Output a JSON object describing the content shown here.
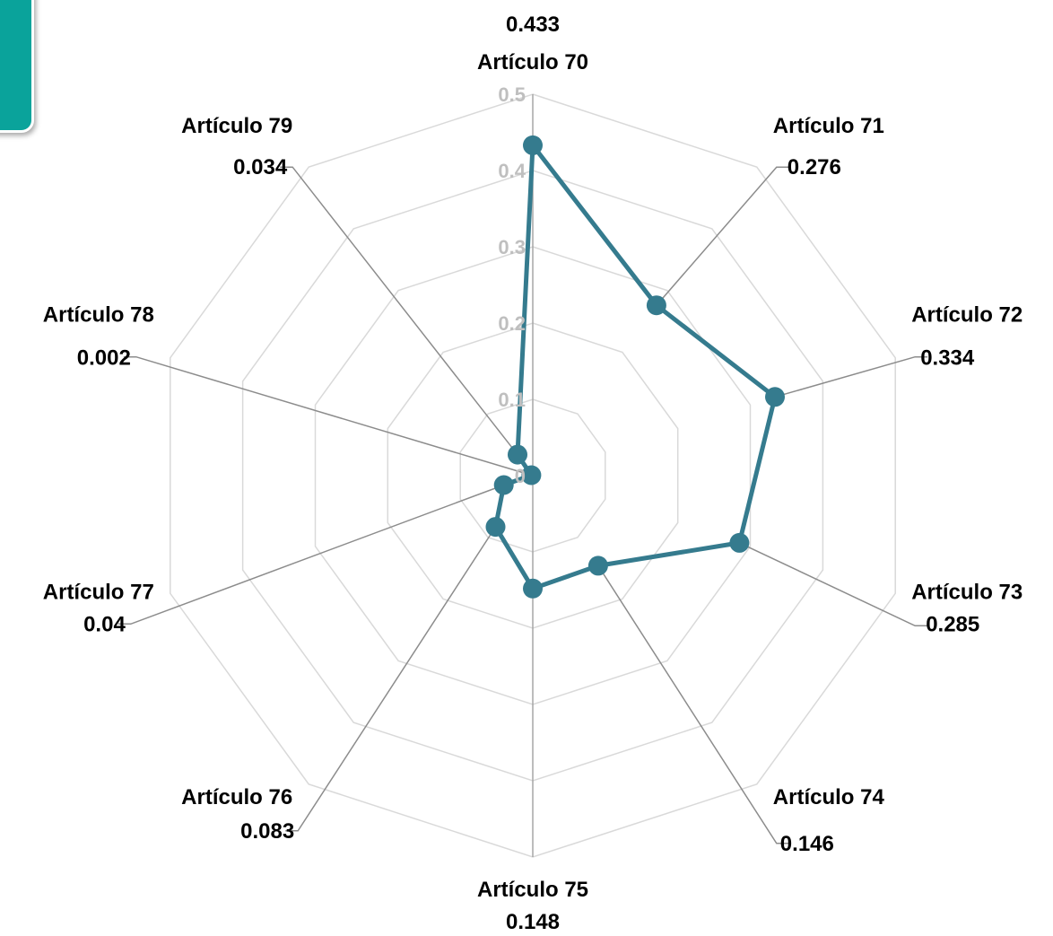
{
  "colors": {
    "series": "#357b8e",
    "grid": "#d9d9d9",
    "spoke": "#a6a6a6",
    "leader": "#8c8c8c",
    "tick_text": "#bfbfbf",
    "label_text": "#000000",
    "corner_tab": "#0aa39b"
  },
  "chart_data": {
    "type": "radar",
    "categories": [
      "Artículo 70",
      "Artículo 71",
      "Artículo 72",
      "Artículo 73",
      "Artículo 74",
      "Artículo 75",
      "Artículo 76",
      "Artículo 77",
      "Artículo 78",
      "Artículo 79"
    ],
    "series": [
      {
        "values": [
          0.433,
          0.276,
          0.334,
          0.285,
          0.146,
          0.148,
          0.083,
          0.04,
          0.002,
          0.034
        ],
        "value_labels": [
          "0.433",
          "0.276",
          "0.334",
          "0.285",
          "0.146",
          "0.148",
          "0.083",
          "0.04",
          "0.002",
          "0.034"
        ]
      }
    ],
    "ticks": [
      "0",
      "0.1",
      "0.2",
      "0.3",
      "0.4",
      "0.5"
    ],
    "rlim": [
      0,
      0.5
    ],
    "grid": true,
    "data_labels": true
  }
}
